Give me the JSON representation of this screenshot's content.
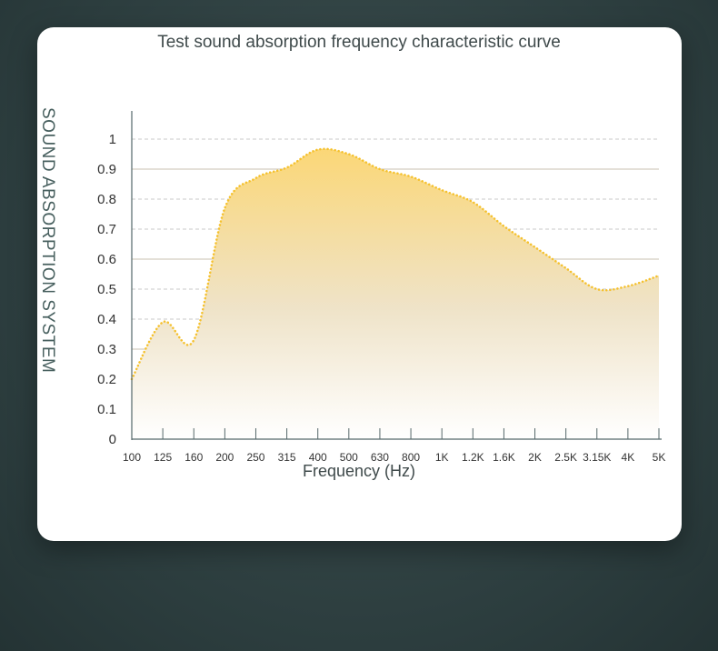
{
  "chart_data": {
    "type": "area",
    "title": "Test sound absorption frequency characteristic curve",
    "xlabel": "Frequency (Hz)",
    "ylabel": "SOUND ABSORPTION SYSTEM",
    "categories": [
      "100",
      "125",
      "160",
      "200",
      "250",
      "315",
      "400",
      "500",
      "630",
      "800",
      "1K",
      "1.2K",
      "1.6K",
      "2K",
      "2.5K",
      "3.15K",
      "4K",
      "5K"
    ],
    "values": [
      0.2,
      0.39,
      0.33,
      0.77,
      0.87,
      0.905,
      0.965,
      0.95,
      0.9,
      0.875,
      0.83,
      0.79,
      0.71,
      0.64,
      0.57,
      0.5,
      0.51,
      0.545
    ],
    "yticks": [
      "0",
      "0.1",
      "0.2",
      "0.3",
      "0.4",
      "0.5",
      "0.6",
      "0.7",
      "0.8",
      "0.9",
      "1"
    ],
    "ylim": [
      0,
      1
    ],
    "grid": true,
    "colors": {
      "line": "#f5c12e",
      "fill_top": "#fbd777",
      "fill_bottom": "#ffffff",
      "axis": "#55686a",
      "background": "#2e3f40"
    }
  }
}
